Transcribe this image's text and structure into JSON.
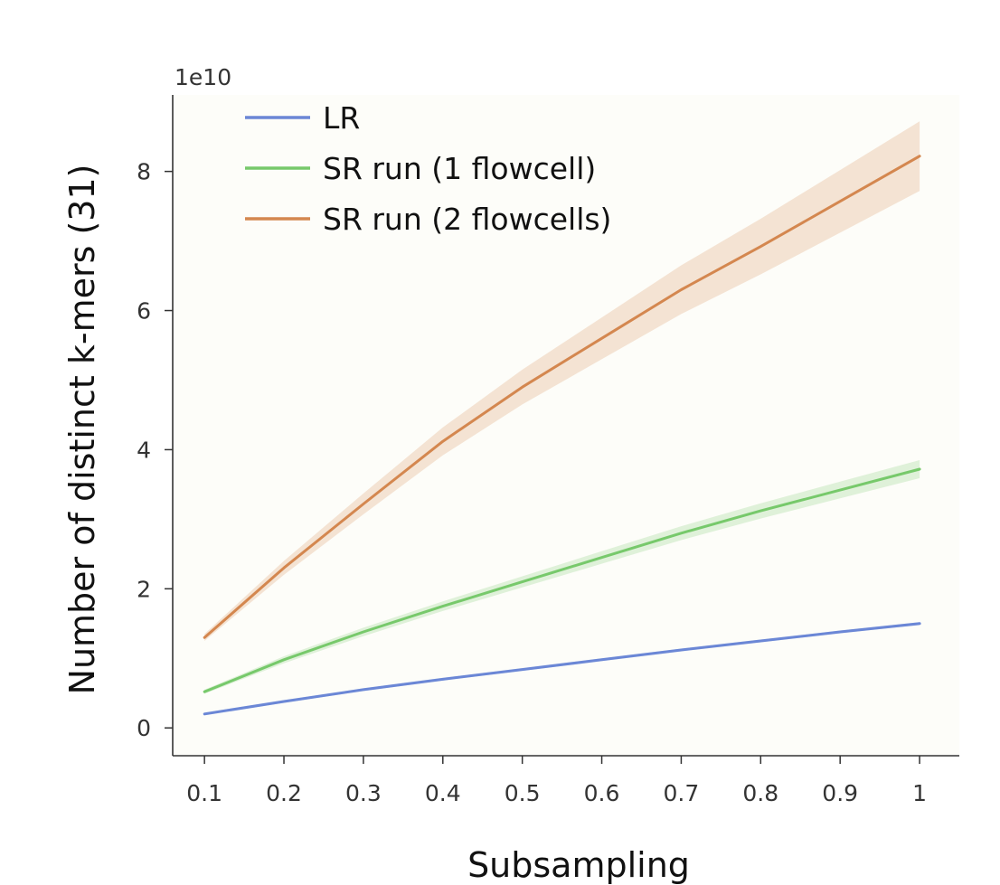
{
  "chart_data": {
    "type": "line",
    "xlabel": "Subsampling",
    "ylabel": "Number of distinct k-mers (31)",
    "y_scale_label": "1e10",
    "x": [
      0.1,
      0.2,
      0.3,
      0.4,
      0.5,
      0.6,
      0.7,
      0.8,
      0.9,
      1.0
    ],
    "xticks": [
      "0.1",
      "0.2",
      "0.3",
      "0.4",
      "0.5",
      "0.6",
      "0.7",
      "0.8",
      "0.9",
      "1"
    ],
    "yticks": [
      "0",
      "2",
      "4",
      "6",
      "8"
    ],
    "xlim": [
      0.06,
      1.05
    ],
    "ylim": [
      -0.4,
      9.1
    ],
    "grid": false,
    "legend_position": "top-left",
    "series": [
      {
        "name": "LR",
        "color": "#6b87d6",
        "values": [
          0.2,
          0.38,
          0.55,
          0.7,
          0.84,
          0.98,
          1.12,
          1.25,
          1.38,
          1.5
        ],
        "ci_halfwidth": [
          0.02,
          0.02,
          0.02,
          0.02,
          0.02,
          0.02,
          0.02,
          0.02,
          0.02,
          0.02
        ]
      },
      {
        "name": "SR run (1 flowcell)",
        "color": "#77c96b",
        "values": [
          0.52,
          0.98,
          1.38,
          1.75,
          2.1,
          2.45,
          2.8,
          3.12,
          3.42,
          3.72
        ],
        "ci_halfwidth": [
          0.03,
          0.05,
          0.06,
          0.07,
          0.08,
          0.09,
          0.1,
          0.11,
          0.12,
          0.13
        ]
      },
      {
        "name": "SR run (2 flowcells)",
        "color": "#d4874f",
        "values": [
          1.3,
          2.3,
          3.22,
          4.12,
          4.9,
          5.6,
          6.3,
          6.92,
          7.57,
          8.22
        ],
        "ci_halfwidth": [
          0.05,
          0.1,
          0.15,
          0.2,
          0.25,
          0.3,
          0.35,
          0.4,
          0.45,
          0.5
        ]
      }
    ]
  }
}
